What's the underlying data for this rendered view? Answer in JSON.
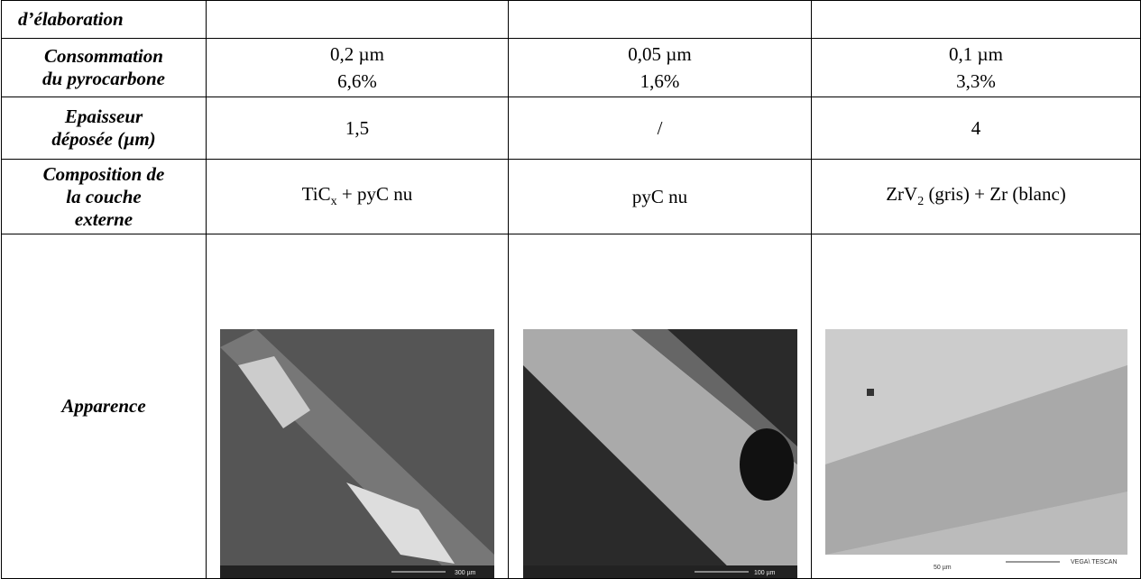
{
  "table": {
    "rows": [
      {
        "label": [
          "d’élaboration"
        ]
      },
      {
        "label": [
          "Consommation",
          "du pyrocarbone"
        ],
        "cells": [
          [
            "0,2 µm",
            "6,6%"
          ],
          [
            "0,05 µm",
            "1,6%"
          ],
          [
            "0,1 µm",
            "3,3%"
          ]
        ]
      },
      {
        "label": [
          "Epaisseur",
          "déposée (µm)"
        ],
        "cells": [
          [
            "1,5"
          ],
          [
            "/"
          ],
          [
            "4"
          ]
        ]
      },
      {
        "label": [
          "Composition de",
          "la couche",
          "externe"
        ],
        "cells": [
          [
            "TiC",
            "x",
            " + pyC nu"
          ],
          [
            "pyC nu"
          ],
          [
            "ZrV",
            "2",
            " (gris) + Zr (blanc)"
          ]
        ]
      },
      {
        "label": [
          "Apparence"
        ],
        "images": [
          {
            "scale": "300 µm"
          },
          {
            "scale": "100 µm"
          },
          {
            "scale": "50 µm",
            "brand": "VEGA\\ TESCAN"
          }
        ]
      }
    ]
  }
}
